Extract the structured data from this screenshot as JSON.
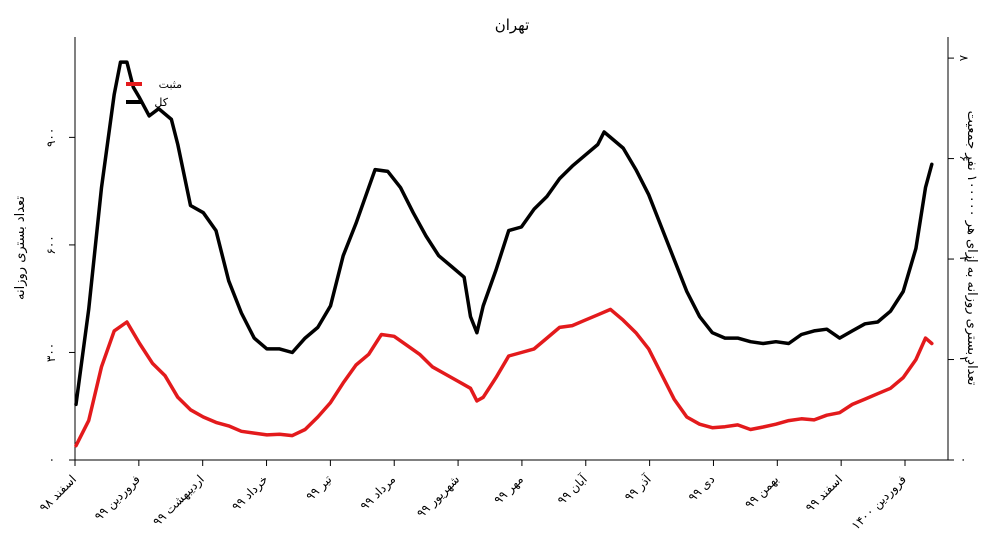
{
  "chart_data": {
    "type": "line",
    "title": "تهران",
    "ylabel_left": "تعداد بستری روزانه",
    "ylabel_right": "تعداد بستری روزانه به ازای هر ۱۰۰۰۰۰ نفر جمعیت",
    "x_tick_labels": [
      "اسفند ۹۸",
      "فروردین ۹۹",
      "اردیبهشت ۹۹",
      "خرداد ۹۹",
      "تیر ۹۹",
      "مرداد ۹۹",
      "شهریور ۹۹",
      "مهر ۹۹",
      "آبان ۹۹",
      "آذر ۹۹",
      "دی ۹۹",
      "بهمن ۹۹",
      "اسفند ۹۹",
      "فروردین ۱۴۰۰"
    ],
    "x_range": [
      0,
      13.5
    ],
    "y_left_ticks": [
      0,
      300,
      600,
      900
    ],
    "y_left_tick_labels": [
      "۰",
      "۳۰۰",
      "۶۰۰",
      "۹۰۰"
    ],
    "y_left_range": [
      0,
      1180
    ],
    "y_right_ticks": [
      0,
      2,
      4,
      6,
      8
    ],
    "y_right_tick_labels": [
      "۰",
      "۲",
      "۴",
      "۶",
      "۸"
    ],
    "y_right_range": [
      0,
      8.42
    ],
    "legend": [
      {
        "label": "مثبت",
        "color": "#e31a1c"
      },
      {
        "label": "کل",
        "color": "#000000"
      }
    ],
    "series": [
      {
        "name": "کل",
        "color": "#000000",
        "points": [
          [
            0.0,
            155
          ],
          [
            0.2,
            420
          ],
          [
            0.4,
            760
          ],
          [
            0.6,
            1020
          ],
          [
            0.7,
            1110
          ],
          [
            0.8,
            1110
          ],
          [
            0.9,
            1040
          ],
          [
            1.0,
            1010
          ],
          [
            1.15,
            960
          ],
          [
            1.3,
            980
          ],
          [
            1.5,
            950
          ],
          [
            1.6,
            880
          ],
          [
            1.8,
            710
          ],
          [
            2.0,
            690
          ],
          [
            2.2,
            640
          ],
          [
            2.4,
            500
          ],
          [
            2.6,
            410
          ],
          [
            2.8,
            340
          ],
          [
            3.0,
            310
          ],
          [
            3.2,
            310
          ],
          [
            3.4,
            300
          ],
          [
            3.6,
            340
          ],
          [
            3.8,
            370
          ],
          [
            4.0,
            430
          ],
          [
            4.2,
            570
          ],
          [
            4.4,
            660
          ],
          [
            4.6,
            760
          ],
          [
            4.7,
            810
          ],
          [
            4.9,
            805
          ],
          [
            5.1,
            760
          ],
          [
            5.3,
            690
          ],
          [
            5.5,
            625
          ],
          [
            5.7,
            570
          ],
          [
            5.9,
            540
          ],
          [
            6.1,
            510
          ],
          [
            6.2,
            400
          ],
          [
            6.3,
            355
          ],
          [
            6.4,
            430
          ],
          [
            6.6,
            530
          ],
          [
            6.8,
            640
          ],
          [
            7.0,
            650
          ],
          [
            7.2,
            700
          ],
          [
            7.4,
            735
          ],
          [
            7.6,
            785
          ],
          [
            7.8,
            820
          ],
          [
            8.0,
            850
          ],
          [
            8.2,
            880
          ],
          [
            8.3,
            915
          ],
          [
            8.4,
            900
          ],
          [
            8.6,
            870
          ],
          [
            8.8,
            810
          ],
          [
            9.0,
            740
          ],
          [
            9.2,
            650
          ],
          [
            9.4,
            560
          ],
          [
            9.6,
            470
          ],
          [
            9.8,
            400
          ],
          [
            10.0,
            355
          ],
          [
            10.2,
            340
          ],
          [
            10.4,
            340
          ],
          [
            10.6,
            330
          ],
          [
            10.8,
            325
          ],
          [
            11.0,
            330
          ],
          [
            11.2,
            325
          ],
          [
            11.4,
            350
          ],
          [
            11.6,
            360
          ],
          [
            11.8,
            365
          ],
          [
            12.0,
            340
          ],
          [
            12.2,
            360
          ],
          [
            12.4,
            380
          ],
          [
            12.6,
            385
          ],
          [
            12.8,
            415
          ],
          [
            13.0,
            470
          ],
          [
            13.2,
            590
          ],
          [
            13.35,
            760
          ],
          [
            13.45,
            825
          ]
        ]
      },
      {
        "name": "مثبت",
        "color": "#e31a1c",
        "points": [
          [
            0.0,
            40
          ],
          [
            0.2,
            110
          ],
          [
            0.4,
            260
          ],
          [
            0.6,
            360
          ],
          [
            0.8,
            385
          ],
          [
            1.0,
            325
          ],
          [
            1.2,
            270
          ],
          [
            1.4,
            235
          ],
          [
            1.6,
            175
          ],
          [
            1.8,
            140
          ],
          [
            2.0,
            120
          ],
          [
            2.2,
            105
          ],
          [
            2.4,
            95
          ],
          [
            2.6,
            80
          ],
          [
            2.8,
            75
          ],
          [
            3.0,
            70
          ],
          [
            3.2,
            72
          ],
          [
            3.4,
            68
          ],
          [
            3.6,
            85
          ],
          [
            3.8,
            120
          ],
          [
            4.0,
            160
          ],
          [
            4.2,
            215
          ],
          [
            4.4,
            265
          ],
          [
            4.6,
            295
          ],
          [
            4.8,
            350
          ],
          [
            5.0,
            345
          ],
          [
            5.2,
            320
          ],
          [
            5.4,
            295
          ],
          [
            5.6,
            260
          ],
          [
            5.8,
            240
          ],
          [
            6.0,
            220
          ],
          [
            6.2,
            200
          ],
          [
            6.3,
            165
          ],
          [
            6.4,
            175
          ],
          [
            6.6,
            230
          ],
          [
            6.8,
            290
          ],
          [
            7.0,
            300
          ],
          [
            7.2,
            310
          ],
          [
            7.4,
            340
          ],
          [
            7.6,
            370
          ],
          [
            7.8,
            375
          ],
          [
            8.0,
            390
          ],
          [
            8.2,
            405
          ],
          [
            8.4,
            420
          ],
          [
            8.6,
            390
          ],
          [
            8.8,
            355
          ],
          [
            9.0,
            310
          ],
          [
            9.2,
            240
          ],
          [
            9.4,
            170
          ],
          [
            9.6,
            120
          ],
          [
            9.8,
            100
          ],
          [
            10.0,
            90
          ],
          [
            10.2,
            93
          ],
          [
            10.4,
            98
          ],
          [
            10.6,
            85
          ],
          [
            10.8,
            92
          ],
          [
            11.0,
            100
          ],
          [
            11.2,
            110
          ],
          [
            11.4,
            115
          ],
          [
            11.6,
            112
          ],
          [
            11.8,
            125
          ],
          [
            12.0,
            132
          ],
          [
            12.2,
            155
          ],
          [
            12.4,
            170
          ],
          [
            12.6,
            185
          ],
          [
            12.8,
            200
          ],
          [
            13.0,
            230
          ],
          [
            13.2,
            280
          ],
          [
            13.35,
            340
          ],
          [
            13.45,
            325
          ]
        ]
      }
    ],
    "grid": false
  }
}
